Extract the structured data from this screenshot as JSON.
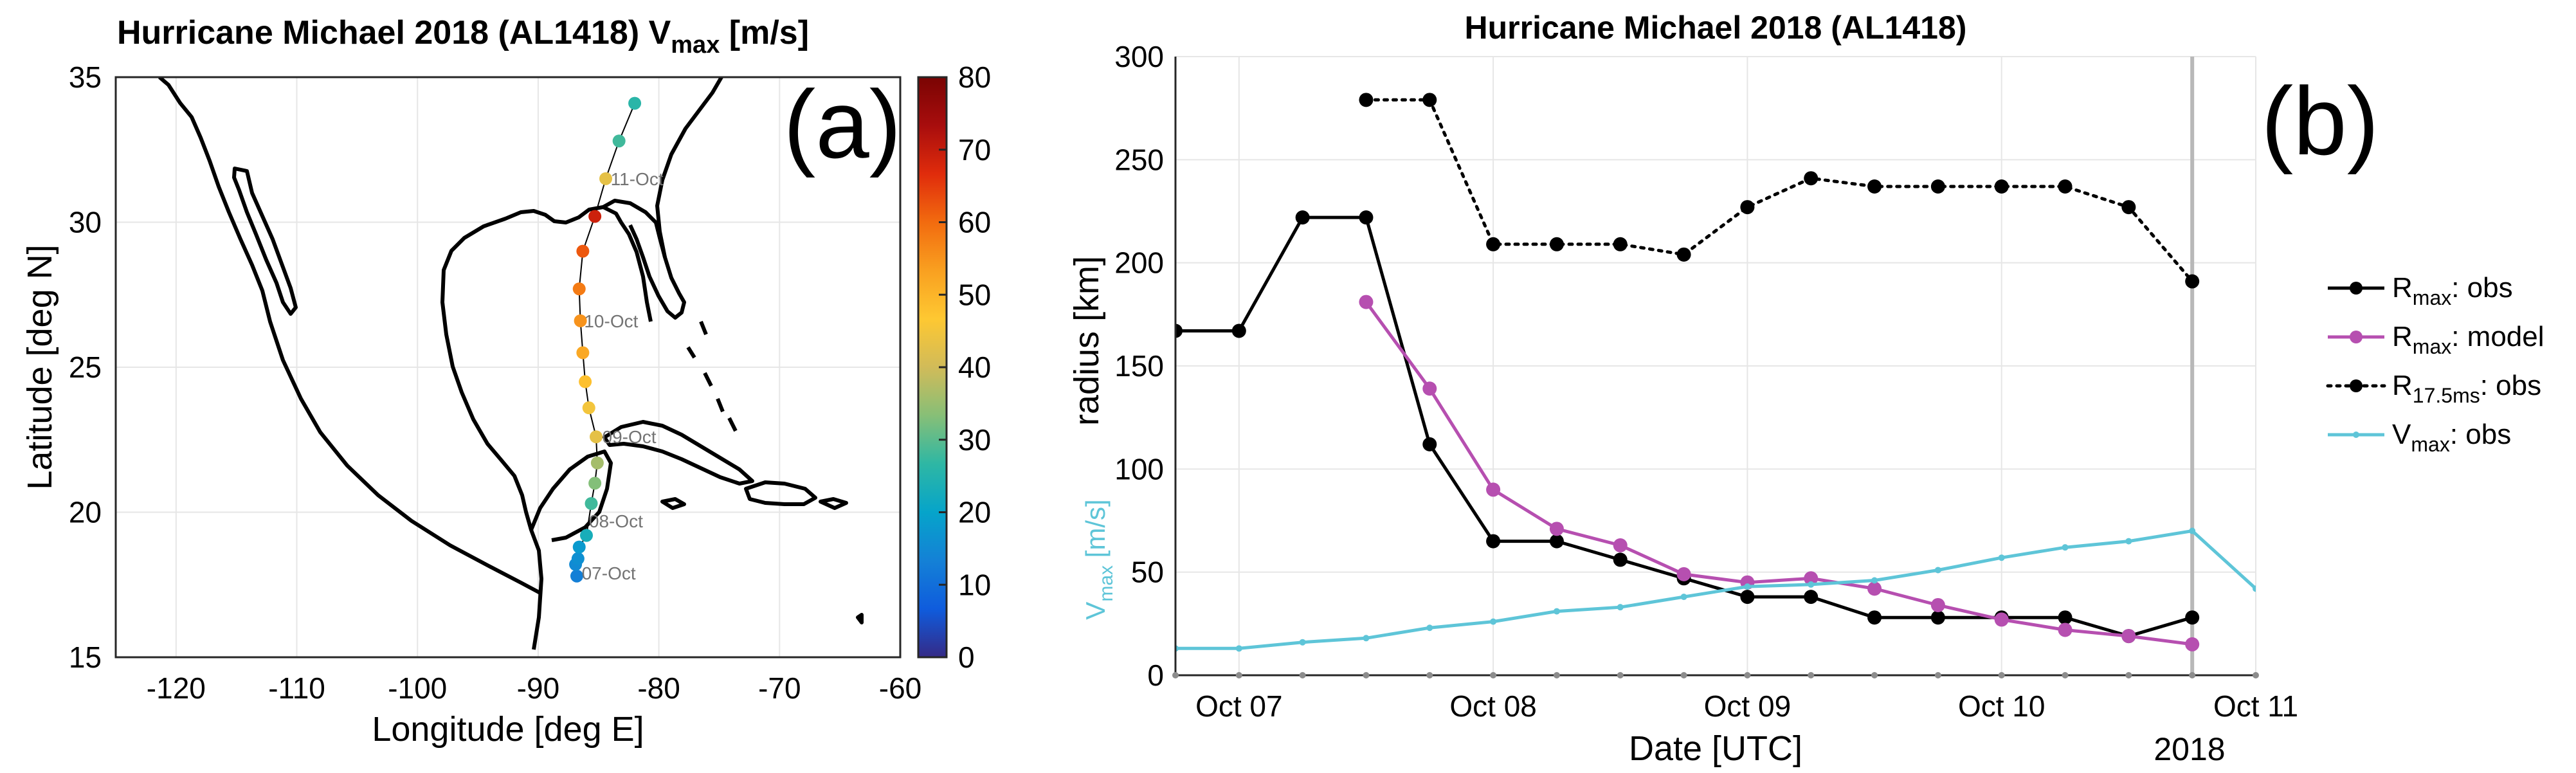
{
  "chart_data": [
    {
      "type": "scatter",
      "panel_label": "(a)",
      "title_main": "Hurricane Michael 2018 (AL1418) V",
      "title_sub": "max",
      "title_units": " [m/s]",
      "xlabel": "Longitude [deg E]",
      "ylabel": "Latitude [deg N]",
      "xlim": [
        -125,
        -60
      ],
      "ylim": [
        15,
        35
      ],
      "xticks": [
        -120,
        -110,
        -100,
        -90,
        -80,
        -70,
        -60
      ],
      "yticks": [
        15,
        20,
        25,
        30,
        35
      ],
      "colorbar": {
        "range": [
          0,
          80
        ],
        "ticks": [
          0,
          10,
          20,
          30,
          40,
          50,
          60,
          70,
          80
        ],
        "stops": [
          "#352a87",
          "#0f5cdd",
          "#1481d6",
          "#06a4ca",
          "#2eb7a4",
          "#87bf77",
          "#d1bb59",
          "#fec832",
          "#f9a020",
          "#f26b0f",
          "#e02c0c",
          "#a80d0d",
          "#7a0403"
        ]
      },
      "track": [
        {
          "lon": -86.8,
          "lat": 17.8,
          "v": 13
        },
        {
          "lon": -86.9,
          "lat": 18.2,
          "v": 15
        },
        {
          "lon": -86.7,
          "lat": 18.4,
          "v": 16
        },
        {
          "lon": -86.6,
          "lat": 18.8,
          "v": 18
        },
        {
          "lon": -86.0,
          "lat": 19.2,
          "v": 23
        },
        {
          "lon": -85.6,
          "lat": 20.3,
          "v": 28
        },
        {
          "lon": -85.3,
          "lat": 21.0,
          "v": 33
        },
        {
          "lon": -85.1,
          "lat": 21.7,
          "v": 36
        },
        {
          "lon": -85.2,
          "lat": 22.6,
          "v": 43
        },
        {
          "lon": -85.8,
          "lat": 23.6,
          "v": 45
        },
        {
          "lon": -86.1,
          "lat": 24.5,
          "v": 48
        },
        {
          "lon": -86.3,
          "lat": 25.5,
          "v": 52
        },
        {
          "lon": -86.5,
          "lat": 26.6,
          "v": 55
        },
        {
          "lon": -86.6,
          "lat": 27.7,
          "v": 58
        },
        {
          "lon": -86.3,
          "lat": 29.0,
          "v": 62
        },
        {
          "lon": -85.3,
          "lat": 30.2,
          "v": 69
        },
        {
          "lon": -84.4,
          "lat": 31.5,
          "v": 43
        },
        {
          "lon": -83.3,
          "lat": 32.8,
          "v": 28
        },
        {
          "lon": -82.0,
          "lat": 34.1,
          "v": 26
        }
      ],
      "date_labels": [
        {
          "text": "07-Oct",
          "lon": -86.5,
          "lat": 17.9
        },
        {
          "text": "08-Oct",
          "lon": -85.9,
          "lat": 19.7
        },
        {
          "text": "09-Oct",
          "lon": -84.8,
          "lat": 22.6
        },
        {
          "text": "10-Oct",
          "lon": -86.3,
          "lat": 26.6
        },
        {
          "text": "11-Oct",
          "lon": -84.1,
          "lat": 31.5
        }
      ]
    },
    {
      "type": "line",
      "panel_label": "(b)",
      "title": "Hurricane Michael 2018 (AL1418)",
      "xlabel": "Date [UTC]",
      "ylabel": "radius [km]",
      "ylabel2_main": "V",
      "ylabel2_sub": "max",
      "ylabel2_units": " [m/s]",
      "xlim": [
        6.75,
        11.0
      ],
      "ylim": [
        0,
        300
      ],
      "yticks": [
        0,
        50,
        100,
        150,
        200,
        250,
        300
      ],
      "xticks": [
        {
          "x": 7,
          "label": "Oct 07"
        },
        {
          "x": 8,
          "label": "Oct 08"
        },
        {
          "x": 9,
          "label": "Oct 09"
        },
        {
          "x": 10,
          "label": "Oct 10"
        },
        {
          "x": 11,
          "label": "Oct 11"
        }
      ],
      "year_label": "2018",
      "vline_x": 10.75,
      "series": [
        {
          "name": "R_max: obs",
          "legend_main": "R",
          "legend_sub": "max",
          "legend_rest": ": obs",
          "color": "#000000",
          "style": "solid",
          "marker": "dot",
          "x": [
            6.75,
            7.0,
            7.25,
            7.5,
            7.75,
            8.0,
            8.25,
            8.5,
            8.75,
            9.0,
            9.25,
            9.5,
            9.75,
            10.0,
            10.25,
            10.5,
            10.75
          ],
          "y": [
            167,
            167,
            222,
            222,
            112,
            65,
            65,
            56,
            47,
            38,
            38,
            28,
            28,
            28,
            28,
            19,
            28
          ]
        },
        {
          "name": "R_max: model",
          "legend_main": "R",
          "legend_sub": "max",
          "legend_rest": ": model",
          "color": "#b64fb0",
          "style": "solid",
          "marker": "dot",
          "x": [
            7.5,
            7.75,
            8.0,
            8.25,
            8.5,
            8.75,
            9.0,
            9.25,
            9.5,
            9.75,
            10.0,
            10.25,
            10.5,
            10.75
          ],
          "y": [
            181,
            139,
            90,
            71,
            63,
            49,
            45,
            47,
            42,
            34,
            27,
            22,
            19,
            15
          ]
        },
        {
          "name": "R_17.5ms: obs",
          "legend_main": "R",
          "legend_sub": "17.5ms",
          "legend_rest": ": obs",
          "color": "#000000",
          "style": "dotted",
          "marker": "dot",
          "x": [
            7.5,
            7.75,
            8.0,
            8.25,
            8.5,
            8.75,
            9.0,
            9.25,
            9.5,
            9.75,
            10.0,
            10.25,
            10.5,
            10.75
          ],
          "y": [
            279,
            279,
            209,
            209,
            209,
            204,
            227,
            241,
            237,
            237,
            237,
            237,
            227,
            191
          ]
        },
        {
          "name": "V_max: obs",
          "legend_main": "V",
          "legend_sub": "max",
          "legend_rest": ": obs",
          "color": "#5ec5d8",
          "style": "solid",
          "marker": "small",
          "x": [
            6.75,
            7.0,
            7.25,
            7.5,
            7.75,
            8.0,
            8.25,
            8.5,
            8.75,
            9.0,
            9.25,
            9.5,
            9.75,
            10.0,
            10.25,
            10.5,
            10.75,
            11.0
          ],
          "y": [
            13,
            13,
            16,
            18,
            23,
            26,
            31,
            33,
            38,
            43,
            44,
            46,
            51,
            57,
            62,
            65,
            70,
            42
          ]
        }
      ]
    }
  ]
}
